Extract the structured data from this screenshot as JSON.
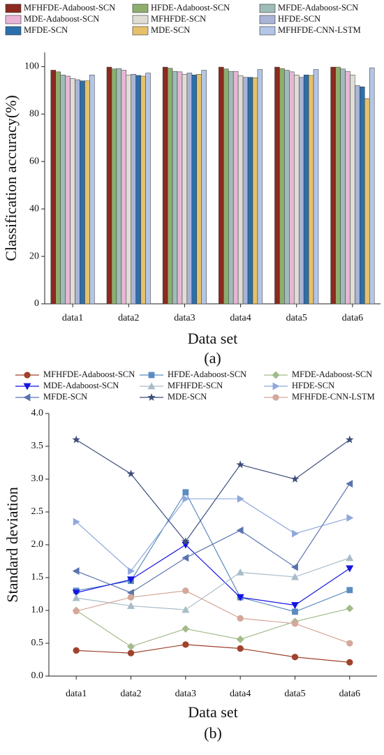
{
  "chart_data": [
    {
      "type": "bar",
      "caption": "(a)",
      "x_label": "Data set",
      "y_label": "Classification accuracy(%)",
      "categories": [
        "data1",
        "data2",
        "data3",
        "data4",
        "data5",
        "data6"
      ],
      "ylim": [
        0,
        106
      ],
      "yticks": [
        0,
        20,
        40,
        60,
        80,
        100
      ],
      "series": [
        {
          "name": "MFHFDE-Adaboost-SCN",
          "color": "#8b2a1e",
          "values": [
            98.5,
            99.8,
            99.8,
            99.8,
            99.8,
            99.8
          ]
        },
        {
          "name": "HFDE-Adaboost-SCN",
          "color": "#8fae6e",
          "values": [
            97.8,
            99,
            99.3,
            99,
            99.2,
            99.8
          ]
        },
        {
          "name": "MFDE-Adaboost-SCN",
          "color": "#9fbdb8",
          "values": [
            96.5,
            99.2,
            98,
            98,
            98.5,
            99
          ]
        },
        {
          "name": "MDE-Adaboost-SCN",
          "color": "#e9b5d6",
          "values": [
            96,
            98.5,
            97.8,
            98,
            97.8,
            98
          ]
        },
        {
          "name": "MFHFDE-SCN",
          "color": "#e0ddd5",
          "values": [
            95,
            96.5,
            96.8,
            96.2,
            96.5,
            96.5
          ]
        },
        {
          "name": "HFDE-SCN",
          "color": "#aab4d6",
          "values": [
            94.5,
            96.8,
            97.3,
            95.5,
            95.5,
            92
          ]
        },
        {
          "name": "MFDE-SCN",
          "color": "#2c6fad",
          "values": [
            94,
            96.3,
            96.5,
            95.5,
            96.5,
            91.5
          ]
        },
        {
          "name": "MDE-SCN",
          "color": "#e6c16a",
          "values": [
            94,
            96,
            96.8,
            95.3,
            96.3,
            86.5
          ]
        },
        {
          "name": "MFHFDE-CNN-LSTM",
          "color": "#b4c6e6",
          "values": [
            96.5,
            97.3,
            98.5,
            98.8,
            98.8,
            99.5
          ]
        }
      ]
    },
    {
      "type": "line",
      "caption": "(b)",
      "x_label": "Data set",
      "y_label": "Standard deviation",
      "categories": [
        "data1",
        "data2",
        "data3",
        "data4",
        "data5",
        "data6"
      ],
      "ylim": [
        0,
        4
      ],
      "yticks": [
        {
          "value": 0,
          "label": "0.0"
        },
        0.5,
        {
          "value": 1,
          "label": "1.0"
        },
        1.5,
        {
          "value": 2,
          "label": "2.0"
        },
        2.5,
        {
          "value": 3,
          "label": "3.0"
        },
        3.5,
        {
          "value": 4,
          "label": "4.0"
        }
      ],
      "series": [
        {
          "name": "MFHFDE-Adaboost-SCN",
          "color": "#a0422c",
          "marker": "circle",
          "values": [
            0.39,
            0.35,
            0.48,
            0.42,
            0.29,
            0.21
          ]
        },
        {
          "name": "HFDE-Adaboost-SCN",
          "color": "#5b8cc0",
          "marker": "square",
          "values": [
            1.3,
            1.45,
            2.8,
            1.2,
            0.98,
            1.31
          ]
        },
        {
          "name": "MFDE-Adaboost-SCN",
          "color": "#a3bb8a",
          "marker": "diamond",
          "values": [
            1.0,
            0.45,
            0.72,
            0.56,
            0.83,
            1.03
          ]
        },
        {
          "name": "MDE-Adaboost-SCN",
          "color": "#1515e0",
          "marker": "triangle-down",
          "values": [
            1.27,
            1.47,
            2.0,
            1.2,
            1.08,
            1.64
          ]
        },
        {
          "name": "MFHFDE-SCN",
          "color": "#a8bcc8",
          "marker": "triangle-up",
          "values": [
            1.19,
            1.07,
            1.01,
            1.58,
            1.51,
            1.8
          ]
        },
        {
          "name": "HFDE-SCN",
          "color": "#8fa8dc",
          "marker": "triangle-right",
          "values": [
            2.35,
            1.6,
            2.7,
            2.7,
            2.17,
            2.41
          ]
        },
        {
          "name": "MFDE-SCN",
          "color": "#5a74b0",
          "marker": "triangle-left",
          "values": [
            1.6,
            1.27,
            1.8,
            2.22,
            1.66,
            2.93
          ]
        },
        {
          "name": "MDE-SCN",
          "color": "#3d4e7a",
          "marker": "star",
          "values": [
            3.6,
            3.08,
            2.05,
            3.22,
            3.0,
            3.6
          ]
        },
        {
          "name": "MFHFDE-CNN-LSTM",
          "color": "#d4a89a",
          "marker": "circle",
          "values": [
            0.99,
            1.2,
            1.3,
            0.88,
            0.8,
            0.5
          ]
        }
      ]
    }
  ]
}
